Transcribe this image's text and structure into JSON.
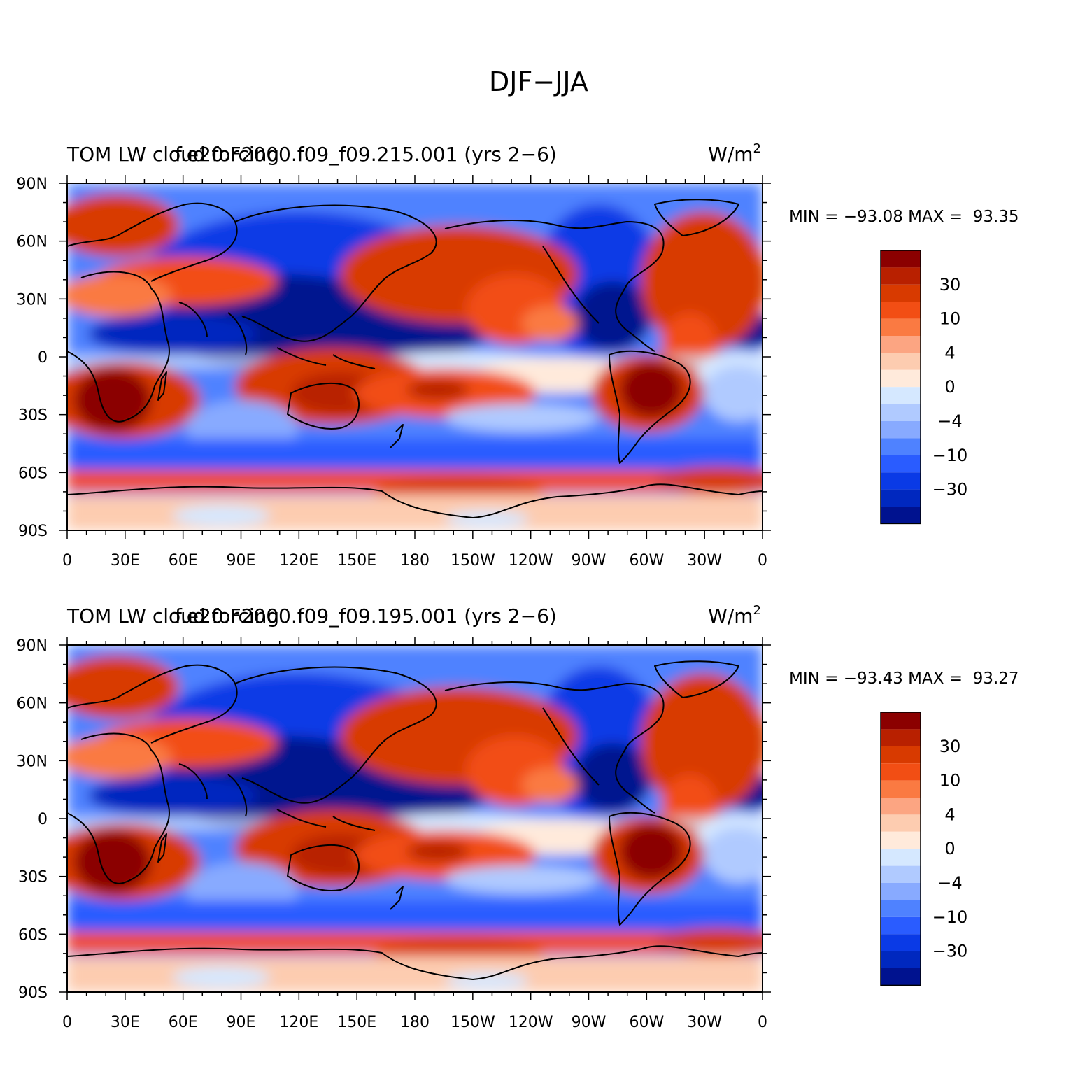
{
  "figure": {
    "title": "DJF−JJA"
  },
  "panels": [
    {
      "left_title": "TOM LW cloud forcing",
      "center_title": "f.e20.F2000.f09_f09.215.001 (yrs 2−6)",
      "units_base": "W/m",
      "units_exp": "2",
      "min_max": "MIN = −93.08 MAX =  93.35",
      "min": -93.08,
      "max": 93.35
    },
    {
      "left_title": "TOM LW cloud forcing",
      "center_title": "f.e20.F2000.f09_f09.195.001 (yrs 2−6)",
      "units_base": "W/m",
      "units_exp": "2",
      "min_max": "MIN = −93.43 MAX =  93.27",
      "min": -93.43,
      "max": 93.27
    }
  ],
  "axes": {
    "lon_labels": [
      "0",
      "30E",
      "60E",
      "90E",
      "120E",
      "150E",
      "180",
      "150W",
      "120W",
      "90W",
      "60W",
      "30W",
      "0"
    ],
    "lon_values": [
      0,
      30,
      60,
      90,
      120,
      150,
      180,
      210,
      240,
      270,
      300,
      330,
      360
    ],
    "lat_labels": [
      "90N",
      "60N",
      "30N",
      "0",
      "30S",
      "60S",
      "90S"
    ],
    "lat_values": [
      90,
      60,
      30,
      0,
      -30,
      -60,
      -90
    ],
    "lon_range": [
      0,
      360
    ],
    "lat_range": [
      -90,
      90
    ]
  },
  "colorbar": {
    "colors": [
      "#8b0000",
      "#b82000",
      "#d83a00",
      "#f24e14",
      "#fa7a42",
      "#fca582",
      "#fdccb0",
      "#ffeadb",
      "#d5e8ff",
      "#b0caff",
      "#88aaff",
      "#4f82ff",
      "#2a5cff",
      "#0a3ae6",
      "#0028bf",
      "#00128f"
    ],
    "labels": [
      "30",
      "10",
      "4",
      "0",
      "−4",
      "−10",
      "−30"
    ]
  },
  "chart_data": {
    "type": "heatmap",
    "title": "DJF−JJA",
    "xlabel": "",
    "ylabel": "",
    "xlim": [
      0,
      360
    ],
    "ylim": [
      -90,
      90
    ],
    "units": "W/m2",
    "levels": [
      -40,
      -30,
      -20,
      -10,
      -6,
      -4,
      -2,
      0,
      2,
      4,
      6,
      10,
      20,
      30,
      40
    ],
    "panels": [
      {
        "name": "f.e20.F2000.f09_f09.215.001 (yrs 2−6)",
        "min": -93.08,
        "max": 93.35
      },
      {
        "name": "f.e20.F2000.f09_f09.195.001 (yrs 2−6)",
        "min": -93.43,
        "max": 93.27
      }
    ]
  }
}
